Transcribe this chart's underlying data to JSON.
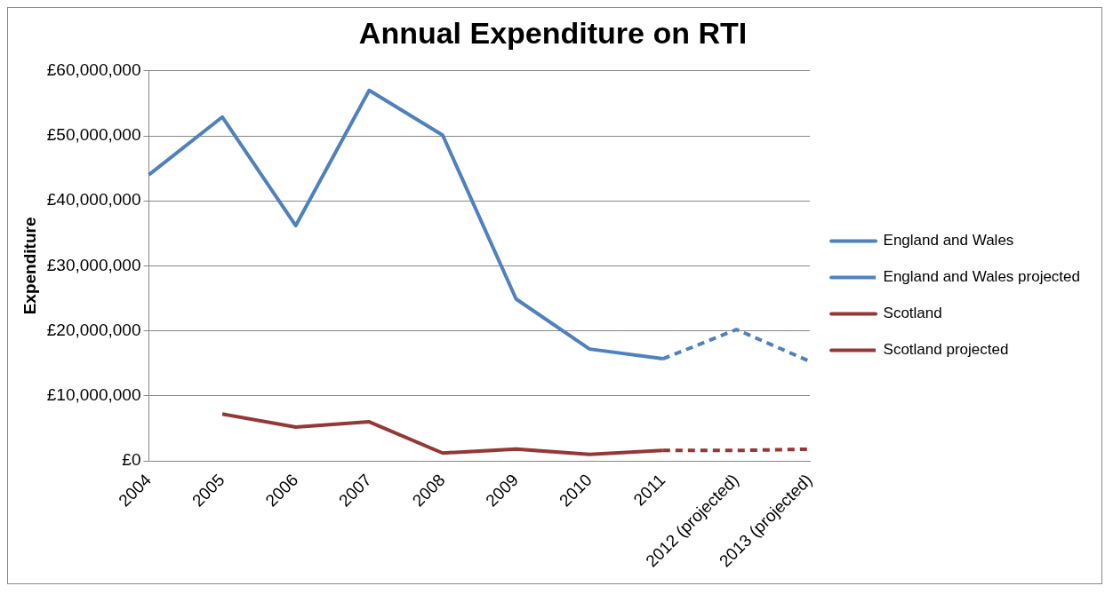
{
  "chart_data": {
    "type": "line",
    "title": "Annual Expenditure on RTI",
    "ylabel": "Expenditure",
    "categories": [
      "2004",
      "2005",
      "2006",
      "2007",
      "2008",
      "2009",
      "2010",
      "2011",
      "2012 (projected)",
      "2013 (projected)"
    ],
    "series": [
      {
        "name": "England and Wales",
        "color": "#4f81bd",
        "line_style": "solid",
        "values": [
          44000000,
          52900000,
          36200000,
          57000000,
          50100000,
          24900000,
          17200000,
          15700000,
          null,
          null
        ]
      },
      {
        "name": "England and Wales projected",
        "color": "#4f81bd",
        "line_style": "dashed",
        "values": [
          null,
          null,
          null,
          null,
          null,
          null,
          null,
          15700000,
          20200000,
          15300000
        ]
      },
      {
        "name": "Scotland",
        "color": "#953735",
        "line_style": "solid",
        "values": [
          null,
          7200000,
          5200000,
          6000000,
          1200000,
          1800000,
          1000000,
          1600000,
          null,
          null
        ]
      },
      {
        "name": "Scotland projected",
        "color": "#953735",
        "line_style": "dashed",
        "values": [
          null,
          null,
          null,
          null,
          null,
          null,
          null,
          1600000,
          1600000,
          1800000
        ]
      }
    ],
    "ylim": [
      0,
      60000000
    ],
    "yticks": [
      {
        "value": 0,
        "label": "£0"
      },
      {
        "value": 10000000,
        "label": "£10,000,000"
      },
      {
        "value": 20000000,
        "label": "£20,000,000"
      },
      {
        "value": 30000000,
        "label": "£30,000,000"
      },
      {
        "value": 40000000,
        "label": "£40,000,000"
      },
      {
        "value": 50000000,
        "label": "£50,000,000"
      },
      {
        "value": 60000000,
        "label": "£60,000,000"
      }
    ],
    "grid": "y",
    "legend": "right",
    "marker": "none"
  }
}
